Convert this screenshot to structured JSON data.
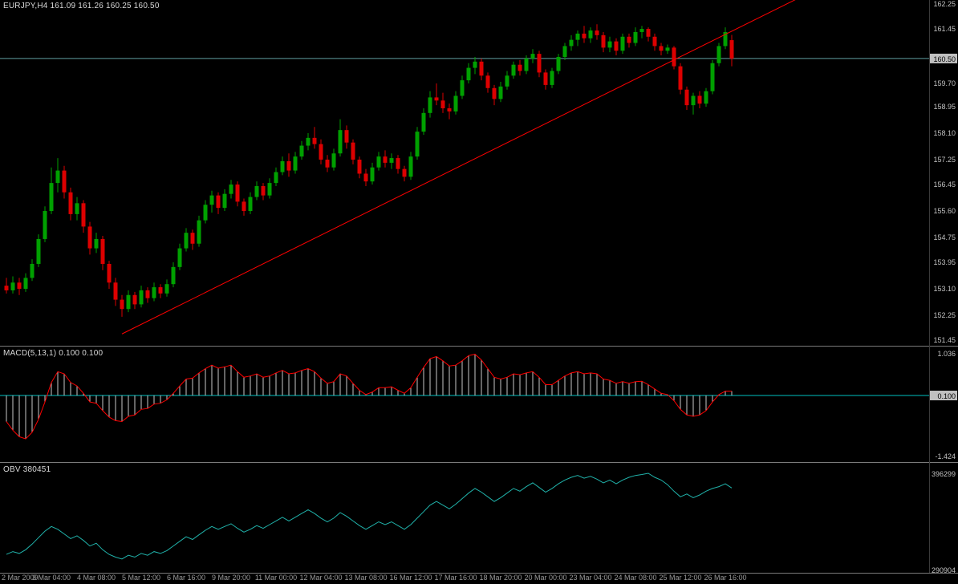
{
  "window": {
    "background": "#000000",
    "separator_color": "#7a7a7a"
  },
  "header": {
    "symbol_info": "EURJPY,H4  161.09 161.26 160.25 160.50"
  },
  "chart_data": [
    {
      "type": "candlestick",
      "title": "EURJPY,H4",
      "timeframe": "H4",
      "symbol": "EURJPY",
      "current_bar": {
        "open": 161.09,
        "high": 161.26,
        "low": 160.25,
        "close": 160.5
      },
      "current_price": 160.5,
      "current_price_label": "160.50",
      "y_axis": {
        "price_top": 162.38,
        "price_bottom": 151.27,
        "ticks": [
          162.25,
          161.45,
          159.7,
          158.95,
          158.1,
          157.25,
          156.45,
          155.6,
          154.75,
          153.95,
          153.1,
          152.25,
          151.45
        ]
      },
      "colors": {
        "up": "#00A000",
        "down": "#DD0000",
        "trendline": "#FF0000",
        "price_line": "#5F9EA0",
        "price_box_bg": "#C0C0C0",
        "axis_text": "#C0C0C0"
      },
      "trendline": {
        "index1": 18,
        "price1": 151.65,
        "index2": 123,
        "price2": 162.4
      },
      "candles": [
        [
          153.2,
          153.45,
          152.95,
          153.05
        ],
        [
          153.05,
          153.5,
          152.95,
          153.3
        ],
        [
          153.3,
          153.45,
          152.9,
          153.1
        ],
        [
          153.1,
          153.6,
          153.0,
          153.45
        ],
        [
          153.45,
          154.05,
          153.35,
          153.9
        ],
        [
          153.9,
          154.85,
          153.8,
          154.7
        ],
        [
          154.7,
          155.75,
          154.6,
          155.6
        ],
        [
          155.6,
          157.0,
          155.5,
          156.5
        ],
        [
          156.5,
          157.3,
          156.2,
          156.9
        ],
        [
          156.9,
          157.05,
          156.0,
          156.2
        ],
        [
          156.2,
          156.35,
          155.3,
          155.5
        ],
        [
          155.5,
          156.05,
          155.3,
          155.85
        ],
        [
          155.85,
          155.95,
          154.9,
          155.1
        ],
        [
          155.1,
          155.25,
          154.2,
          154.4
        ],
        [
          154.4,
          154.9,
          154.25,
          154.7
        ],
        [
          154.7,
          154.8,
          153.7,
          153.9
        ],
        [
          153.9,
          154.0,
          153.1,
          153.3
        ],
        [
          153.3,
          153.45,
          152.55,
          152.75
        ],
        [
          152.75,
          152.9,
          152.2,
          152.45
        ],
        [
          152.45,
          153.05,
          152.35,
          152.9
        ],
        [
          152.9,
          153.0,
          152.45,
          152.6
        ],
        [
          152.6,
          153.2,
          152.5,
          153.05
        ],
        [
          153.05,
          153.15,
          152.65,
          152.8
        ],
        [
          152.8,
          153.3,
          152.7,
          153.15
        ],
        [
          153.15,
          153.25,
          152.8,
          152.95
        ],
        [
          152.95,
          153.4,
          152.85,
          153.25
        ],
        [
          153.25,
          153.95,
          153.15,
          153.8
        ],
        [
          153.8,
          154.55,
          153.7,
          154.4
        ],
        [
          154.4,
          155.05,
          154.3,
          154.9
        ],
        [
          154.9,
          155.0,
          154.35,
          154.55
        ],
        [
          154.55,
          155.45,
          154.45,
          155.3
        ],
        [
          155.3,
          155.95,
          155.2,
          155.8
        ],
        [
          155.8,
          156.25,
          155.55,
          156.1
        ],
        [
          156.1,
          156.2,
          155.5,
          155.7
        ],
        [
          155.7,
          156.3,
          155.6,
          156.15
        ],
        [
          156.15,
          156.6,
          156.0,
          156.45
        ],
        [
          156.45,
          156.55,
          155.75,
          155.9
        ],
        [
          155.9,
          156.0,
          155.45,
          155.6
        ],
        [
          155.6,
          156.2,
          155.5,
          156.05
        ],
        [
          156.05,
          156.55,
          155.95,
          156.4
        ],
        [
          156.4,
          156.5,
          155.95,
          156.1
        ],
        [
          156.1,
          156.65,
          156.0,
          156.5
        ],
        [
          156.5,
          157.0,
          156.4,
          156.85
        ],
        [
          156.85,
          157.35,
          156.75,
          157.2
        ],
        [
          157.2,
          157.45,
          156.7,
          156.9
        ],
        [
          156.9,
          157.5,
          156.8,
          157.35
        ],
        [
          157.35,
          157.85,
          157.25,
          157.7
        ],
        [
          157.7,
          158.1,
          157.55,
          157.95
        ],
        [
          157.95,
          158.3,
          157.6,
          157.75
        ],
        [
          157.75,
          157.9,
          157.1,
          157.25
        ],
        [
          157.25,
          157.4,
          156.85,
          157.0
        ],
        [
          157.0,
          157.6,
          156.9,
          157.45
        ],
        [
          157.45,
          158.55,
          157.35,
          158.2
        ],
        [
          158.2,
          158.35,
          157.6,
          157.8
        ],
        [
          157.8,
          157.9,
          157.1,
          157.25
        ],
        [
          157.25,
          157.35,
          156.65,
          156.8
        ],
        [
          156.8,
          156.95,
          156.4,
          156.55
        ],
        [
          156.55,
          157.15,
          156.45,
          157.0
        ],
        [
          157.0,
          157.5,
          156.9,
          157.35
        ],
        [
          157.35,
          157.55,
          157.0,
          157.15
        ],
        [
          157.15,
          157.45,
          156.95,
          157.3
        ],
        [
          157.3,
          157.4,
          156.8,
          156.95
        ],
        [
          156.95,
          157.05,
          156.55,
          156.7
        ],
        [
          156.7,
          157.5,
          156.6,
          157.35
        ],
        [
          157.35,
          158.3,
          157.25,
          158.15
        ],
        [
          158.15,
          158.9,
          158.05,
          158.75
        ],
        [
          158.75,
          159.45,
          158.6,
          159.25
        ],
        [
          159.25,
          159.7,
          159.0,
          159.15
        ],
        [
          159.15,
          159.4,
          158.75,
          158.9
        ],
        [
          158.9,
          159.05,
          158.55,
          158.8
        ],
        [
          158.8,
          159.45,
          158.7,
          159.3
        ],
        [
          159.3,
          159.95,
          159.2,
          159.8
        ],
        [
          159.8,
          160.35,
          159.7,
          160.2
        ],
        [
          160.2,
          160.55,
          160.0,
          160.4
        ],
        [
          160.4,
          160.5,
          159.8,
          159.95
        ],
        [
          159.95,
          160.05,
          159.4,
          159.55
        ],
        [
          159.55,
          159.65,
          159.0,
          159.2
        ],
        [
          159.2,
          159.75,
          159.1,
          159.6
        ],
        [
          159.6,
          160.1,
          159.5,
          159.95
        ],
        [
          159.95,
          160.4,
          159.85,
          160.3
        ],
        [
          160.3,
          160.45,
          159.95,
          160.1
        ],
        [
          160.1,
          160.6,
          160.0,
          160.5
        ],
        [
          160.5,
          160.8,
          160.35,
          160.65
        ],
        [
          160.65,
          160.75,
          159.9,
          160.05
        ],
        [
          160.05,
          160.15,
          159.5,
          159.65
        ],
        [
          159.65,
          160.2,
          159.55,
          160.1
        ],
        [
          160.1,
          160.65,
          160.0,
          160.55
        ],
        [
          160.55,
          161.0,
          160.45,
          160.9
        ],
        [
          160.9,
          161.25,
          160.75,
          161.1
        ],
        [
          161.1,
          161.4,
          160.9,
          161.3
        ],
        [
          161.3,
          161.55,
          161.0,
          161.15
        ],
        [
          161.15,
          161.5,
          161.0,
          161.4
        ],
        [
          161.4,
          161.6,
          161.1,
          161.25
        ],
        [
          161.25,
          161.35,
          160.7,
          160.85
        ],
        [
          160.85,
          161.2,
          160.7,
          161.05
        ],
        [
          161.05,
          161.15,
          160.6,
          160.75
        ],
        [
          160.75,
          161.3,
          160.65,
          161.2
        ],
        [
          161.2,
          161.3,
          160.85,
          161.0
        ],
        [
          161.0,
          161.5,
          160.9,
          161.35
        ],
        [
          161.35,
          161.55,
          161.15,
          161.45
        ],
        [
          161.45,
          161.5,
          161.05,
          161.2
        ],
        [
          161.2,
          161.3,
          160.75,
          160.9
        ],
        [
          160.9,
          161.0,
          160.6,
          160.75
        ],
        [
          160.75,
          160.95,
          160.65,
          160.85
        ],
        [
          160.85,
          160.9,
          160.15,
          160.25
        ],
        [
          160.25,
          160.35,
          159.35,
          159.5
        ],
        [
          159.5,
          159.6,
          158.85,
          159.0
        ],
        [
          159.0,
          159.4,
          158.7,
          159.3
        ],
        [
          159.3,
          159.45,
          158.9,
          159.05
        ],
        [
          159.05,
          159.55,
          158.95,
          159.45
        ],
        [
          159.45,
          160.45,
          159.35,
          160.35
        ],
        [
          160.35,
          161.0,
          160.25,
          160.9
        ],
        [
          160.9,
          161.5,
          160.8,
          161.35
        ],
        [
          161.09,
          161.26,
          160.25,
          160.5
        ]
      ]
    },
    {
      "type": "macd_histogram",
      "label": "MACD(5,13,1) 0.100 0.100",
      "params": "5,13,1",
      "current_values": [
        0.1,
        0.1
      ],
      "value_box_label": "0.100",
      "y_axis": {
        "max": 1.036,
        "min": -1.424,
        "max_label": "1.036",
        "min_label": "-1.424"
      },
      "colors": {
        "histogram": "#C8C8C8",
        "signal": "#FF0000",
        "zero_line": "#00C0C0",
        "axis_text": "#C0C0C0"
      },
      "values": [
        -0.6,
        -0.8,
        -0.95,
        -1.0,
        -0.85,
        -0.55,
        -0.15,
        0.3,
        0.55,
        0.5,
        0.3,
        0.22,
        0.05,
        -0.15,
        -0.18,
        -0.35,
        -0.5,
        -0.58,
        -0.6,
        -0.48,
        -0.45,
        -0.32,
        -0.3,
        -0.2,
        -0.18,
        -0.1,
        0.05,
        0.22,
        0.38,
        0.4,
        0.52,
        0.62,
        0.7,
        0.63,
        0.66,
        0.7,
        0.55,
        0.42,
        0.45,
        0.5,
        0.42,
        0.45,
        0.52,
        0.58,
        0.5,
        0.52,
        0.58,
        0.62,
        0.55,
        0.4,
        0.28,
        0.32,
        0.5,
        0.45,
        0.28,
        0.12,
        0.02,
        0.08,
        0.18,
        0.18,
        0.2,
        0.12,
        0.05,
        0.18,
        0.42,
        0.65,
        0.85,
        0.9,
        0.8,
        0.68,
        0.7,
        0.8,
        0.92,
        0.95,
        0.82,
        0.62,
        0.42,
        0.38,
        0.42,
        0.5,
        0.48,
        0.52,
        0.55,
        0.42,
        0.25,
        0.25,
        0.35,
        0.45,
        0.52,
        0.55,
        0.5,
        0.52,
        0.5,
        0.38,
        0.35,
        0.28,
        0.32,
        0.28,
        0.32,
        0.33,
        0.25,
        0.15,
        0.05,
        0.02,
        -0.12,
        -0.32,
        -0.45,
        -0.48,
        -0.45,
        -0.35,
        -0.15,
        0.02,
        0.1,
        0.1
      ]
    },
    {
      "type": "line",
      "label": "OBV 380451",
      "indicator": "On Balance Volume",
      "current_value": 380451,
      "y_axis": {
        "max": 396299,
        "min": 290904,
        "max_label": "396299",
        "min_label": "290904"
      },
      "colors": {
        "line": "#20B2AA",
        "axis_text": "#C0C0C0"
      },
      "values": [
        309000,
        312000,
        310000,
        314000,
        320000,
        327000,
        334000,
        339000,
        336000,
        331000,
        326000,
        329000,
        324000,
        318000,
        321000,
        314000,
        309000,
        306000,
        304000,
        308000,
        306000,
        310000,
        308000,
        312000,
        310000,
        313000,
        318000,
        323000,
        328000,
        325000,
        330000,
        335000,
        339000,
        336000,
        339000,
        342000,
        337000,
        333000,
        336000,
        340000,
        337000,
        341000,
        345000,
        349000,
        345000,
        349000,
        353000,
        357000,
        353000,
        348000,
        344000,
        348000,
        354000,
        350000,
        345000,
        340000,
        336000,
        340000,
        344000,
        341000,
        344000,
        340000,
        336000,
        341000,
        348000,
        355000,
        362000,
        366000,
        362000,
        358000,
        363000,
        369000,
        375000,
        380000,
        376000,
        371000,
        366000,
        370000,
        375000,
        380000,
        377000,
        382000,
        386000,
        381000,
        376000,
        380000,
        385000,
        389000,
        392000,
        394000,
        391000,
        393000,
        390000,
        386000,
        389000,
        385000,
        389000,
        392000,
        394000,
        395000,
        396299,
        392000,
        389000,
        384000,
        377000,
        371000,
        374000,
        370000,
        373000,
        377000,
        380000,
        382000,
        385000,
        380451
      ]
    }
  ],
  "time_axis": {
    "text_color": "#9a9a9a",
    "labels": [
      {
        "index": 0,
        "text": "2 Mar 2009"
      },
      {
        "index": 7,
        "text": "3 Mar 04:00"
      },
      {
        "index": 14,
        "text": "4 Mar 08:00"
      },
      {
        "index": 21,
        "text": "5 Mar 12:00"
      },
      {
        "index": 28,
        "text": "6 Mar 16:00"
      },
      {
        "index": 35,
        "text": "9 Mar 20:00"
      },
      {
        "index": 42,
        "text": "11 Mar 00:00"
      },
      {
        "index": 49,
        "text": "12 Mar 04:00"
      },
      {
        "index": 56,
        "text": "13 Mar 08:00"
      },
      {
        "index": 63,
        "text": "16 Mar 12:00"
      },
      {
        "index": 70,
        "text": "17 Mar 16:00"
      },
      {
        "index": 77,
        "text": "18 Mar 20:00"
      },
      {
        "index": 84,
        "text": "20 Mar 00:00"
      },
      {
        "index": 91,
        "text": "23 Mar 04:00"
      },
      {
        "index": 98,
        "text": "24 Mar 08:00"
      },
      {
        "index": 105,
        "text": "25 Mar 12:00"
      },
      {
        "index": 112,
        "text": "26 Mar 16:00"
      }
    ]
  }
}
